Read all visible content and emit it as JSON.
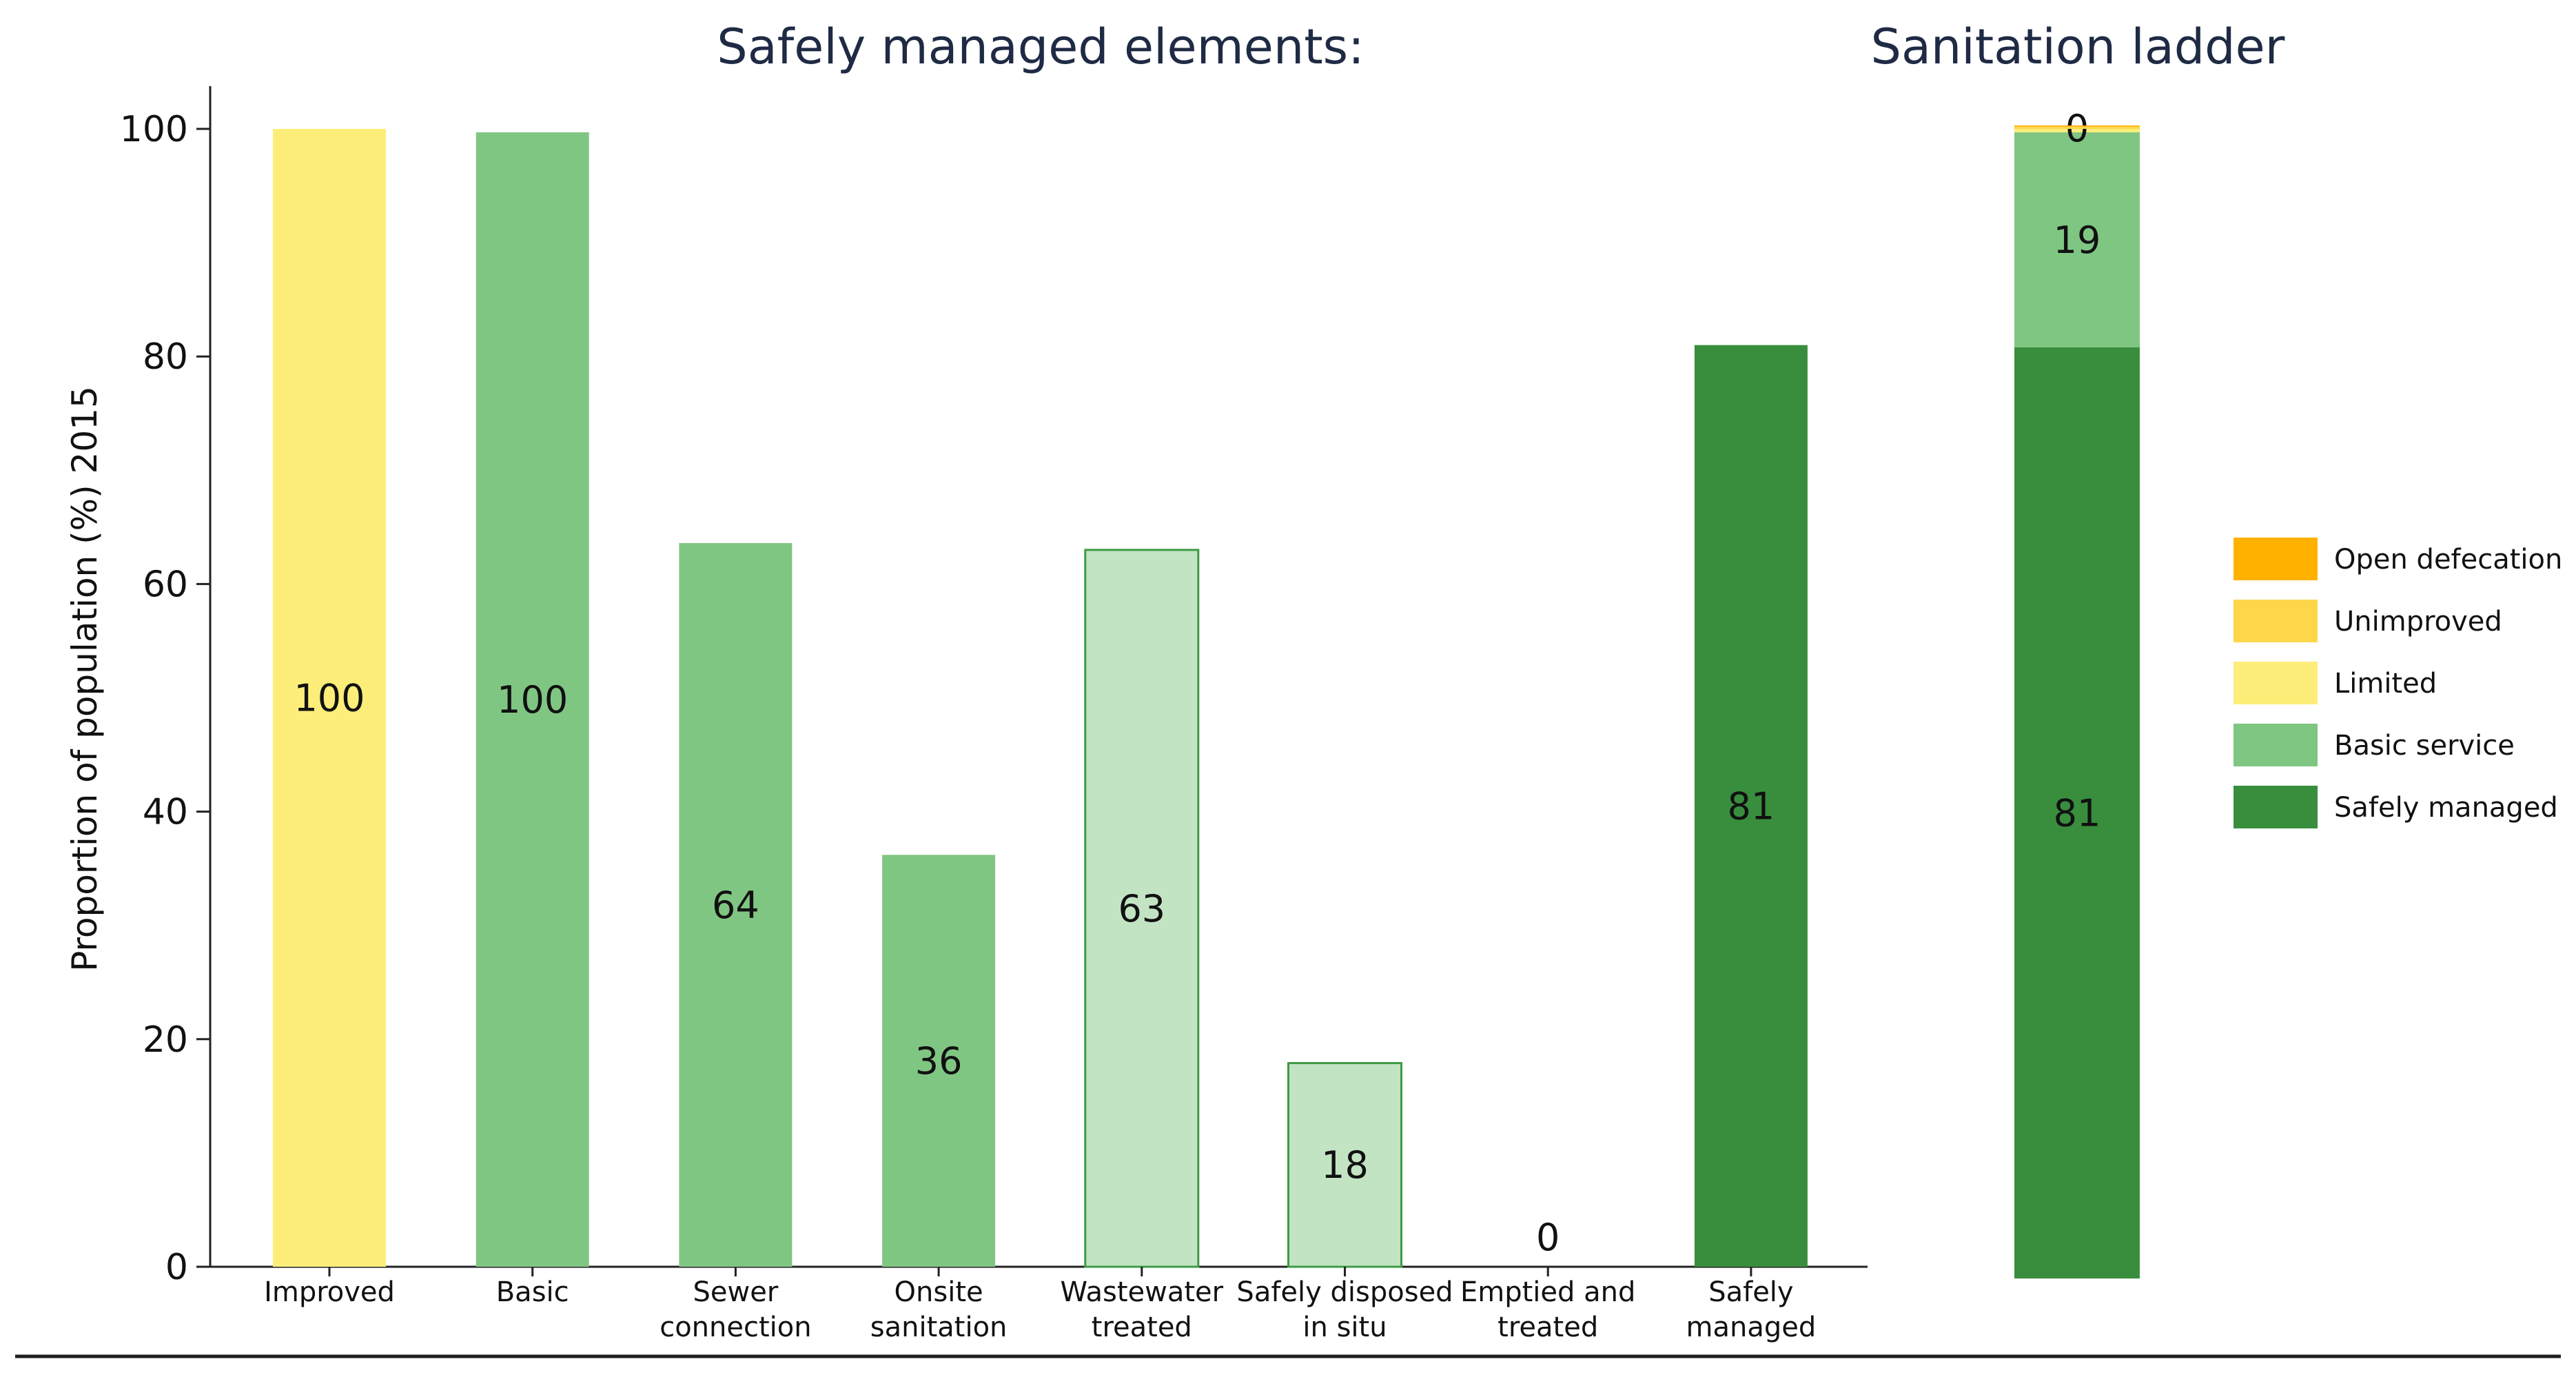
{
  "chart_data": [
    {
      "type": "bar",
      "title": "Safely managed elements:",
      "ylabel": "Proportion of population (%) 2015",
      "ylim": [
        0,
        100
      ],
      "yticks": [
        0,
        20,
        40,
        60,
        80,
        100
      ],
      "categories": [
        [
          "Improved"
        ],
        [
          "Basic"
        ],
        [
          "Sewer",
          "connection"
        ],
        [
          "Onsite",
          "sanitation"
        ],
        [
          "Wastewater",
          "treated"
        ],
        [
          "Safely disposed",
          "in situ"
        ],
        [
          "Emptied and",
          "treated"
        ],
        [
          "Safely",
          "managed"
        ]
      ],
      "values": [
        100,
        99.7,
        63.6,
        36.2,
        63.0,
        17.9,
        0,
        81
      ],
      "labels": [
        "100",
        "100",
        "64",
        "36",
        "63",
        "18",
        "0",
        "81"
      ],
      "fill_colors": [
        "#fdee7a",
        "#80c683",
        "#80c683",
        "#80c683",
        "#c2e4c3",
        "#c2e4c3",
        "#c2e4c3",
        "#398e3d"
      ],
      "stroke_colors": [
        "none",
        "none",
        "none",
        "none",
        "#3f9a45",
        "#3f9a45",
        "#3f9a45",
        "none"
      ]
    },
    {
      "type": "bar",
      "stacked": true,
      "title": "Sanitation ladder",
      "ylim": [
        0,
        100
      ],
      "segments": [
        {
          "name": "Safely managed",
          "value": 81,
          "label": "81",
          "color": "#398e3d"
        },
        {
          "name": "Basic service",
          "value": 18.7,
          "label": "19",
          "color": "#80c683"
        },
        {
          "name": "Limited",
          "value": 0.3,
          "label": "0",
          "color": "#fdee7a"
        },
        {
          "name": "Unimproved",
          "value": 0.2,
          "label": "",
          "color": "#fdd64a"
        },
        {
          "name": "Open defecation",
          "value": 0.1,
          "label": "",
          "color": "#ffb100"
        }
      ],
      "legend": {
        "position": "right",
        "items": [
          {
            "label": "Open defecation",
            "color": "#ffb100"
          },
          {
            "label": "Unimproved",
            "color": "#fdd64a"
          },
          {
            "label": "Limited",
            "color": "#fdee7a"
          },
          {
            "label": "Basic service",
            "color": "#80c683"
          },
          {
            "label": "Safely managed",
            "color": "#398e3d"
          }
        ]
      }
    }
  ]
}
